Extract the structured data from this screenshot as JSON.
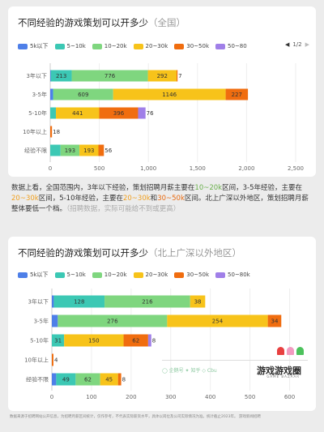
{
  "colors": {
    "lt5k": "#4e7fe8",
    "k5_10": "#3cc8b4",
    "k10_20": "#7fd67f",
    "k20_30": "#f7c31a",
    "k30_50": "#f06d0f",
    "k50_80": "#a07fe8"
  },
  "chart1": {
    "title": "不同经验的游戏策划可以开多少",
    "subtitle": "（全国）",
    "legend": [
      "5k以下",
      "5~10k",
      "10~20k",
      "20~30k",
      "30~50k",
      "50~80"
    ],
    "pager": "1/2",
    "chart_data": {
      "type": "bar",
      "orientation": "horizontal",
      "stacked": true,
      "categories": [
        "3年以下",
        "3-5年",
        "5-10年",
        "10年以上",
        "经验不限"
      ],
      "series": [
        {
          "name": "5k以下",
          "values": [
            6,
            28,
            0,
            0,
            0
          ]
        },
        {
          "name": "5~10k",
          "values": [
            213,
            4,
            58,
            0,
            105
          ]
        },
        {
          "name": "10~20k",
          "values": [
            776,
            609,
            0,
            0,
            193
          ]
        },
        {
          "name": "20~30k",
          "values": [
            292,
            1146,
            441,
            0,
            193
          ]
        },
        {
          "name": "30~50k",
          "values": [
            7,
            227,
            396,
            18,
            56
          ]
        },
        {
          "name": "50~80k",
          "values": [
            0,
            0,
            76,
            0,
            0
          ]
        }
      ],
      "xlim": [
        0,
        2500
      ],
      "xticks": [
        "0",
        "500",
        "1,000",
        "1,500",
        "2,000",
        "2,500"
      ]
    }
  },
  "summary": {
    "p1": "数据上看，全国范围内，3年以下经验，策划招聘月薪主要在",
    "hl1": "10~20k",
    "p2": "区间，3-5年经验，主要在",
    "hl2": "20~30k",
    "p3": "区间，5-10年经验，主要在",
    "hl3": "20~30k",
    "p4": "和",
    "hl4": "30~50k",
    "p5": "区间。北上广深以外地区，策划招聘月薪整体要低一个档。",
    "note": "（招聘数据，实际可能给不到或更高）"
  },
  "chart2": {
    "title": "不同经验的游戏策划可以开多少",
    "subtitle": "（北上广深以外地区）",
    "legend": [
      "5k以下",
      "5~10k",
      "10~20k",
      "20~30k",
      "30~50k",
      "50~80k"
    ],
    "chart_data": {
      "type": "bar",
      "orientation": "horizontal",
      "stacked": true,
      "categories": [
        "3年以下",
        "3-5年",
        "5-10年",
        "10年以上",
        "经验不限"
      ],
      "series": [
        {
          "name": "5k以下",
          "values": [
            5,
            15,
            0,
            0,
            11
          ]
        },
        {
          "name": "5~10k",
          "values": [
            128,
            0,
            31,
            0,
            49
          ]
        },
        {
          "name": "10~20k",
          "values": [
            216,
            276,
            0,
            0,
            62
          ]
        },
        {
          "name": "20~30k",
          "values": [
            38,
            254,
            150,
            0,
            45
          ]
        },
        {
          "name": "30~50k",
          "values": [
            0,
            34,
            62,
            4,
            8
          ]
        },
        {
          "name": "50~80k",
          "values": [
            0,
            0,
            8,
            0,
            0
          ]
        }
      ],
      "xlim": [
        0,
        650
      ],
      "xticks": [
        "0",
        "100",
        "200",
        "300",
        "400",
        "500",
        "600"
      ]
    }
  },
  "watermark": {
    "left": "◯ 企鹅号  ✦ 知乎  ◇ Cbu",
    "brand": "游戏游戏圈",
    "brand_sub": "GAME BAZAAR"
  },
  "footer": "数据来源于招聘网站公开信息，为招聘月薪区间统计，仅作参考，不代表实际薪资水平，具体以岗位及公司实际情况为准。统计截止2023年。\n游戏新闻招聘"
}
